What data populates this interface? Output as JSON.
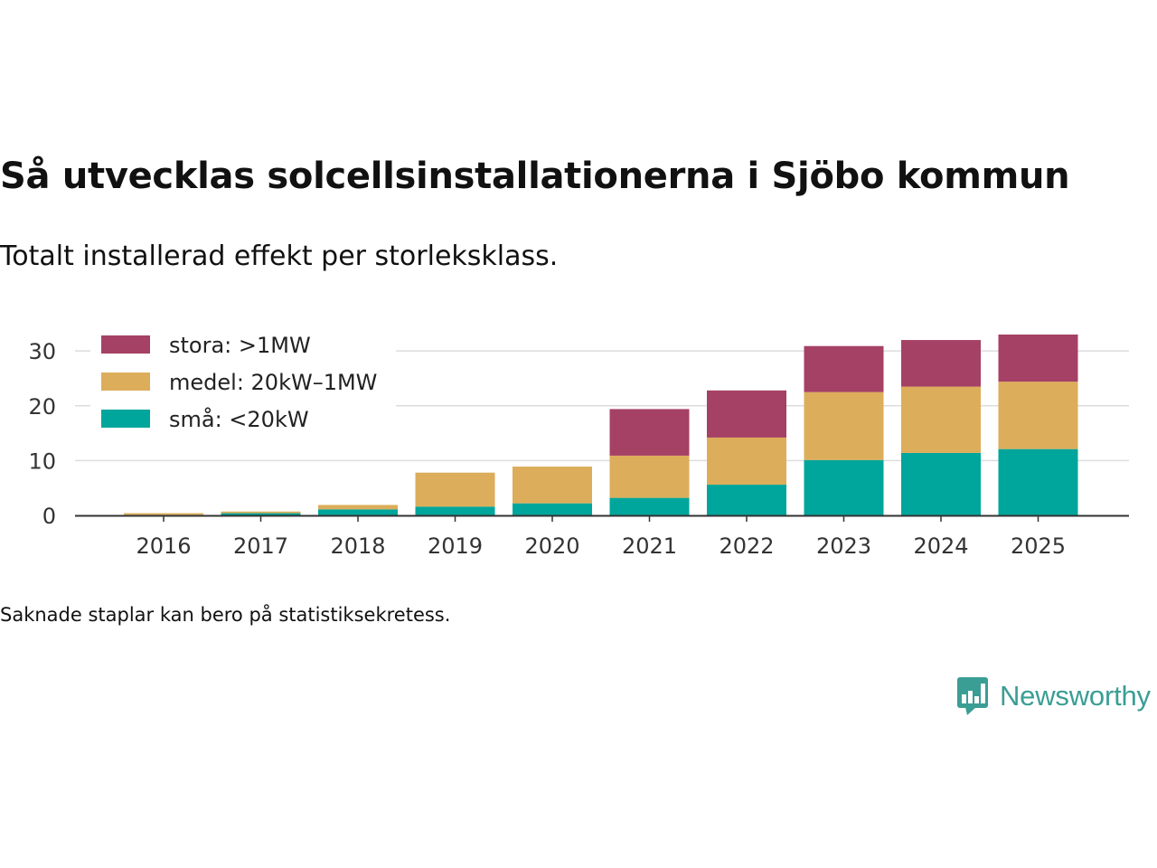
{
  "title": "Så utvecklas solcellsinstallationerna i Sjöbo kommun",
  "subtitle": "Totalt installerad effekt per storleksklass.",
  "footnote": "Saknade staplar kan bero på statistiksekretess.",
  "brand": {
    "name": "Newsworthy",
    "icon": "bar-chart-speech-bubble-icon",
    "color": "#3a9e94"
  },
  "chart_data": {
    "type": "bar",
    "stacked": true,
    "title": "Så utvecklas solcellsinstallationerna i Sjöbo kommun",
    "subtitle": "Totalt installerad effekt per storleksklass.",
    "xlabel": "",
    "ylabel": "",
    "categories": [
      "2016",
      "2017",
      "2018",
      "2019",
      "2020",
      "2021",
      "2022",
      "2023",
      "2024",
      "2025"
    ],
    "ylim": [
      0,
      33
    ],
    "yticks": [
      0,
      10,
      20,
      30
    ],
    "grid": true,
    "legend_position": "top-left",
    "series": [
      {
        "name": "små: <20kW",
        "color": "#00a59b",
        "values": [
          0.1,
          0.4,
          1.1,
          1.6,
          2.2,
          3.2,
          5.6,
          10.1,
          11.4,
          12.1
        ]
      },
      {
        "name": "medel: 20kW–1MW",
        "color": "#dcad5a",
        "values": [
          0.3,
          0.3,
          0.8,
          6.2,
          6.7,
          7.7,
          8.6,
          12.4,
          12.1,
          12.3
        ]
      },
      {
        "name": "stora: >1MW",
        "color": "#a54165",
        "values": [
          0,
          0,
          0,
          0,
          0,
          8.5,
          8.6,
          8.4,
          8.5,
          8.6
        ]
      }
    ]
  }
}
